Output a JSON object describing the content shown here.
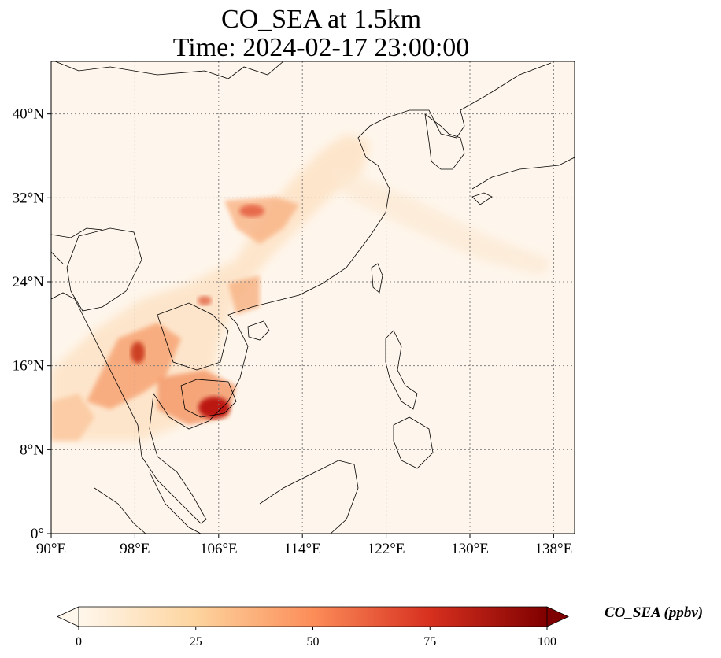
{
  "title": {
    "line1": "CO_SEA at 1.5km",
    "line2": "Time: 2024-02-17 23:00:00"
  },
  "map": {
    "lon_range": [
      90,
      140
    ],
    "lat_range": [
      0,
      45
    ],
    "lon_ticks": [
      "90°E",
      "98°E",
      "106°E",
      "114°E",
      "122°E",
      "130°E",
      "138°E"
    ],
    "lat_ticks": [
      "0°",
      "8°N",
      "16°N",
      "24°N",
      "32°N",
      "40°N"
    ],
    "lon_tick_values": [
      90,
      98,
      106,
      114,
      122,
      130,
      138
    ],
    "lat_tick_values": [
      0,
      8,
      16,
      24,
      32,
      40
    ],
    "gridlines": true,
    "colormap": "OrRd",
    "colors": {
      "low": "#fff7ec",
      "mid": "#fc8d59",
      "high": "#7f0000"
    }
  },
  "colorbar": {
    "label": "CO_SEA (ppbv)",
    "ticks": [
      "0",
      "25",
      "50",
      "75",
      "100"
    ],
    "tick_values": [
      0,
      25,
      50,
      75,
      100
    ],
    "extend": "both"
  }
}
